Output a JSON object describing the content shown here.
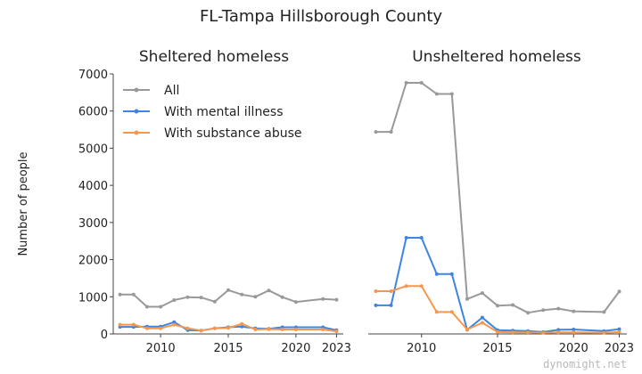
{
  "figure": {
    "title": "FL-Tampa Hillsborough County",
    "watermark": "dynomight.net",
    "legend": {
      "placement": "top-left of first panel",
      "entries": [
        {
          "label": "All",
          "color": "#999999"
        },
        {
          "label": "With mental illness",
          "color": "#3d85e0"
        },
        {
          "label": "With substance abuse",
          "color": "#f5974e"
        }
      ]
    }
  },
  "chart_data": [
    {
      "type": "line",
      "title": "Sheltered homeless",
      "ylabel": "Number of people",
      "xlabel": "",
      "xlim": [
        2006.5,
        2023.5
      ],
      "ylim": [
        0,
        7000
      ],
      "xticks": [
        2010,
        2015,
        2020,
        2023
      ],
      "yticks": [
        0,
        1000,
        2000,
        3000,
        4000,
        5000,
        6000,
        7000
      ],
      "grid": false,
      "x": [
        2007,
        2008,
        2009,
        2010,
        2011,
        2012,
        2013,
        2014,
        2015,
        2016,
        2017,
        2018,
        2019,
        2020,
        2022,
        2023
      ],
      "series": [
        {
          "name": "All",
          "color": "#999999",
          "values": [
            1060,
            1060,
            730,
            730,
            910,
            990,
            980,
            870,
            1180,
            1060,
            1000,
            1170,
            990,
            860,
            940,
            920
          ]
        },
        {
          "name": "With mental illness",
          "color": "#3d85e0",
          "values": [
            190,
            190,
            200,
            200,
            320,
            100,
            90,
            150,
            180,
            200,
            150,
            140,
            180,
            180,
            180,
            100
          ]
        },
        {
          "name": "With substance abuse",
          "color": "#f5974e",
          "values": [
            250,
            250,
            150,
            150,
            250,
            150,
            90,
            150,
            160,
            270,
            120,
            130,
            120,
            120,
            120,
            70
          ]
        }
      ]
    },
    {
      "type": "line",
      "title": "Unsheltered homeless",
      "xlabel": "",
      "xlim": [
        2006.5,
        2023.5
      ],
      "ylim": [
        0,
        7000
      ],
      "xticks": [
        2010,
        2015,
        2020,
        2023
      ],
      "grid": false,
      "x": [
        2007,
        2008,
        2009,
        2010,
        2011,
        2012,
        2013,
        2014,
        2015,
        2016,
        2017,
        2018,
        2019,
        2020,
        2022,
        2023
      ],
      "series": [
        {
          "name": "All",
          "color": "#999999",
          "values": [
            5440,
            5440,
            6760,
            6760,
            6460,
            6460,
            940,
            1100,
            760,
            780,
            570,
            640,
            680,
            610,
            590,
            1140
          ]
        },
        {
          "name": "With mental illness",
          "color": "#3d85e0",
          "values": [
            770,
            770,
            2590,
            2590,
            1610,
            1610,
            110,
            440,
            100,
            90,
            80,
            50,
            110,
            120,
            80,
            130
          ]
        },
        {
          "name": "With substance abuse",
          "color": "#f5974e",
          "values": [
            1150,
            1150,
            1290,
            1290,
            590,
            590,
            120,
            300,
            50,
            40,
            40,
            30,
            40,
            40,
            30,
            50
          ]
        }
      ]
    }
  ]
}
